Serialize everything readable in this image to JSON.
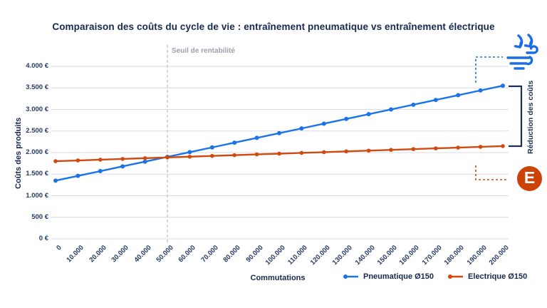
{
  "title": "Comparaison des coûts du cycle de vie : entraînement pneumatique vs entraînement électrique",
  "axes": {
    "y_title": "Coûts des produits",
    "x_title": "Commutations",
    "y_ticks": [
      "0 €",
      "500 €",
      "1.000 €",
      "1.500 €",
      "2.000 €",
      "2.500 €",
      "3.000 €",
      "3.500 €",
      "4.000 €"
    ],
    "x_ticks": [
      "0",
      "10.000",
      "20.000",
      "30.000",
      "40.000",
      "50.000",
      "60.000",
      "70.000",
      "80.000",
      "90.000",
      "100.000",
      "110.000",
      "120.000",
      "130.000",
      "140.000",
      "150.000",
      "160.000",
      "170.000",
      "180.000",
      "190.000",
      "200.000"
    ]
  },
  "annotations": {
    "threshold_label": "Seuil de rentabilité",
    "reduction_label": "Réduction des coûts",
    "electric_letter": "E",
    "icons": {
      "top": "compressed-air-icon",
      "bottom": "electric-drive-icon"
    }
  },
  "legend": [
    {
      "label": "Pneumatique Ø150",
      "color": "#1a73e8"
    },
    {
      "label": "Electrique Ø150",
      "color": "#d1490f"
    }
  ],
  "colors": {
    "pneumatic": "#1a73e8",
    "electric": "#d1490f",
    "electric_icon": "#cc4309",
    "navy": "#16294f",
    "grid": "#d8dbe2",
    "threshold_line": "#c6cad3",
    "muted": "#9aa1ae"
  },
  "chart_data": {
    "type": "line",
    "title": "Comparaison des coûts du cycle de vie : entraînement pneumatique vs entraînement électrique",
    "xlabel": "Commutations",
    "ylabel": "Coûts des produits",
    "x": [
      0,
      10000,
      20000,
      30000,
      40000,
      50000,
      60000,
      70000,
      80000,
      90000,
      100000,
      110000,
      120000,
      130000,
      140000,
      150000,
      160000,
      170000,
      180000,
      190000,
      200000
    ],
    "series": [
      {
        "name": "Pneumatique Ø150",
        "color": "#1a73e8",
        "values": [
          1350,
          1460,
          1570,
          1680,
          1790,
          1900,
          2010,
          2120,
          2230,
          2340,
          2450,
          2560,
          2670,
          2780,
          2890,
          3000,
          3110,
          3220,
          3330,
          3440,
          3550
        ]
      },
      {
        "name": "Electrique Ø150",
        "color": "#d1490f",
        "values": [
          1800,
          1817.5,
          1835,
          1852.5,
          1870,
          1887.5,
          1905,
          1922.5,
          1940,
          1957.5,
          1975,
          1992.5,
          2010,
          2027.5,
          2045,
          2062.5,
          2080,
          2097.5,
          2115,
          2132.5,
          2150
        ]
      }
    ],
    "ylim": [
      0,
      4000
    ],
    "ytick_step": 500,
    "threshold": {
      "x": 50000,
      "label": "Seuil de rentabilité"
    },
    "grid": true,
    "legend_position": "bottom-right"
  }
}
